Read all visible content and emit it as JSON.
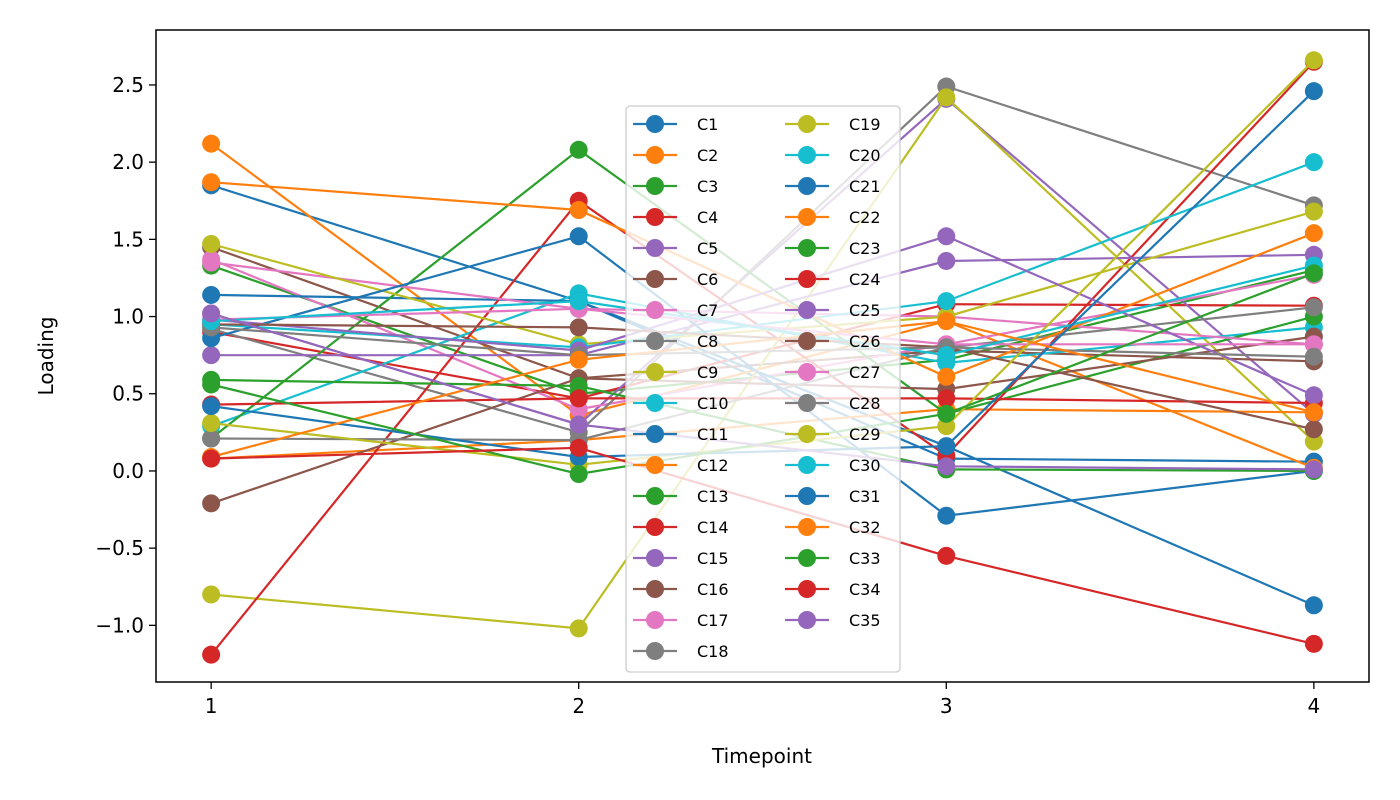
{
  "chart_data": {
    "type": "line",
    "title": "",
    "xlabel": "Timepoint",
    "ylabel": "Loading",
    "x": [
      1,
      2,
      3,
      4
    ],
    "xlim": [
      0.85,
      4.15
    ],
    "ylim": [
      -1.367,
      2.856
    ],
    "xticks": [
      "1",
      "2",
      "3",
      "4"
    ],
    "yticks": [
      "-1.0",
      "-0.5",
      "0.0",
      "0.5",
      "1.0",
      "1.5",
      "2.0",
      "2.5"
    ],
    "ytick_values": [
      -1.0,
      -0.5,
      0.0,
      0.5,
      1.0,
      1.5,
      2.0,
      2.5
    ],
    "grid": false,
    "legend_placement": "center",
    "marker": "circle",
    "series": [
      {
        "name": "C1",
        "color": "#1f77b4",
        "values": [
          1.85,
          1.1,
          0.08,
          0.06
        ]
      },
      {
        "name": "C2",
        "color": "#ff7f0e",
        "values": [
          2.12,
          0.36,
          0.97,
          0.02
        ]
      },
      {
        "name": "C3",
        "color": "#2ca02c",
        "values": [
          1.33,
          0.5,
          0.72,
          1.3
        ]
      },
      {
        "name": "C4",
        "color": "#d62728",
        "values": [
          0.9,
          0.47,
          1.08,
          1.07
        ]
      },
      {
        "name": "C5",
        "color": "#9467bd",
        "values": [
          1.02,
          0.3,
          2.41,
          0.37
        ]
      },
      {
        "name": "C6",
        "color": "#8c564b",
        "values": [
          1.45,
          0.6,
          0.78,
          0.71
        ]
      },
      {
        "name": "C7",
        "color": "#e377c2",
        "values": [
          1.37,
          0.4,
          0.82,
          1.27
        ]
      },
      {
        "name": "C8",
        "color": "#7f7f7f",
        "values": [
          0.92,
          0.25,
          2.49,
          1.72
        ]
      },
      {
        "name": "C9",
        "color": "#bcbd22",
        "values": [
          -0.8,
          -1.02,
          2.42,
          0.19
        ]
      },
      {
        "name": "C10",
        "color": "#17becf",
        "values": [
          0.29,
          1.15,
          0.7,
          0.93
        ]
      },
      {
        "name": "C11",
        "color": "#1f77b4",
        "values": [
          1.14,
          1.1,
          0.16,
          -0.87
        ]
      },
      {
        "name": "C12",
        "color": "#ff7f0e",
        "values": [
          0.08,
          0.2,
          0.4,
          0.38
        ]
      },
      {
        "name": "C13",
        "color": "#2ca02c",
        "values": [
          0.21,
          2.08,
          0.37,
          1.0
        ]
      },
      {
        "name": "C14",
        "color": "#d62728",
        "values": [
          -1.19,
          1.75,
          0.1,
          2.65
        ]
      },
      {
        "name": "C15",
        "color": "#9467bd",
        "values": [
          0.75,
          0.75,
          1.36,
          1.4
        ]
      },
      {
        "name": "C16",
        "color": "#8c564b",
        "values": [
          -0.21,
          0.6,
          0.53,
          0.87
        ]
      },
      {
        "name": "C17",
        "color": "#e377c2",
        "values": [
          1.35,
          1.05,
          1.0,
          0.82
        ]
      },
      {
        "name": "C18",
        "color": "#7f7f7f",
        "values": [
          0.21,
          0.2,
          0.8,
          1.06
        ]
      },
      {
        "name": "C19",
        "color": "#bcbd22",
        "values": [
          1.47,
          0.82,
          1.0,
          1.68
        ]
      },
      {
        "name": "C20",
        "color": "#17becf",
        "values": [
          0.95,
          0.8,
          1.1,
          2.0
        ]
      },
      {
        "name": "C21",
        "color": "#1f77b4",
        "values": [
          0.86,
          1.52,
          -0.29,
          0.0
        ]
      },
      {
        "name": "C22",
        "color": "#ff7f0e",
        "values": [
          1.87,
          1.69,
          0.61,
          1.54
        ]
      },
      {
        "name": "C23",
        "color": "#2ca02c",
        "values": [
          0.59,
          0.55,
          0.01,
          0.0
        ]
      },
      {
        "name": "C24",
        "color": "#d62728",
        "values": [
          0.43,
          0.47,
          0.47,
          0.44
        ]
      },
      {
        "name": "C25",
        "color": "#9467bd",
        "values": [
          0.98,
          0.78,
          1.52,
          0.49
        ]
      },
      {
        "name": "C26",
        "color": "#8c564b",
        "values": [
          0.95,
          0.93,
          0.8,
          0.27
        ]
      },
      {
        "name": "C27",
        "color": "#e377c2",
        "values": [
          0.98,
          1.05,
          0.82,
          0.82
        ]
      },
      {
        "name": "C28",
        "color": "#7f7f7f",
        "values": [
          0.93,
          0.75,
          0.8,
          0.74
        ]
      },
      {
        "name": "C29",
        "color": "#bcbd22",
        "values": [
          0.31,
          0.04,
          0.29,
          2.66
        ]
      },
      {
        "name": "C30",
        "color": "#17becf",
        "values": [
          0.97,
          1.1,
          0.75,
          1.33
        ]
      },
      {
        "name": "C31",
        "color": "#1f77b4",
        "values": [
          0.42,
          0.09,
          0.16,
          2.46
        ]
      },
      {
        "name": "C32",
        "color": "#ff7f0e",
        "values": [
          0.09,
          0.72,
          0.97,
          0.38
        ]
      },
      {
        "name": "C33",
        "color": "#2ca02c",
        "values": [
          0.56,
          -0.02,
          0.37,
          1.28
        ]
      },
      {
        "name": "C34",
        "color": "#d62728",
        "values": [
          0.08,
          0.15,
          -0.55,
          -1.12
        ]
      },
      {
        "name": "C35",
        "color": "#9467bd",
        "values": [
          1.02,
          0.3,
          0.03,
          0.01
        ]
      }
    ]
  }
}
